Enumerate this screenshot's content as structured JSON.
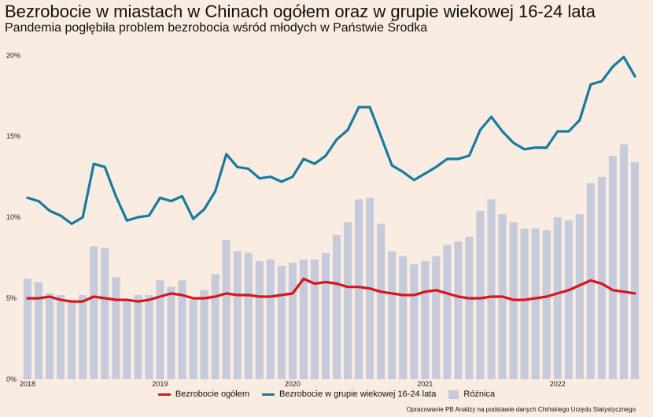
{
  "chart_data": {
    "type": "bar+line",
    "title": "Bezrobocie w miastach w Chinach ogółem oraz w grupie wiekowej 16-24 lata",
    "subtitle": "Pandemia pogłębiła problem bezrobocia wśród młodych w Państwie Środka",
    "source": "Opracowanie PB Analizy na podstawie danych Chińskiego Urzędu Statystycznego",
    "x_start": "2018-01",
    "x_end": "2022-07",
    "x_ticks": [
      "2018",
      "2019",
      "2020",
      "2021",
      "2022"
    ],
    "y_ticks": [
      "0%",
      "5%",
      "10%",
      "15%",
      "20%"
    ],
    "ylim": [
      0,
      20.5
    ],
    "grid": false,
    "legend_position": "bottom",
    "series": [
      {
        "name": "Bezrobocie ogółem",
        "type": "line",
        "color": "#d9141e",
        "values": [
          5.0,
          5.0,
          5.1,
          4.9,
          4.8,
          4.8,
          5.1,
          5.0,
          4.9,
          4.9,
          4.8,
          4.9,
          5.1,
          5.3,
          5.2,
          5.0,
          5.0,
          5.1,
          5.3,
          5.2,
          5.2,
          5.1,
          5.1,
          5.2,
          5.3,
          6.2,
          5.9,
          6.0,
          5.9,
          5.7,
          5.7,
          5.6,
          5.4,
          5.3,
          5.2,
          5.2,
          5.4,
          5.5,
          5.3,
          5.1,
          5.0,
          5.0,
          5.1,
          5.1,
          4.9,
          4.9,
          5.0,
          5.1,
          5.3,
          5.5,
          5.8,
          6.1,
          5.9,
          5.5,
          5.4,
          5.3
        ]
      },
      {
        "name": "Bezrobocie w grupie wiekowej 16-24 lata",
        "type": "line",
        "color": "#177aa0",
        "values": [
          11.2,
          11.0,
          10.4,
          10.1,
          9.6,
          10.0,
          13.3,
          13.1,
          11.3,
          9.8,
          10.0,
          10.1,
          11.2,
          11.0,
          11.3,
          9.9,
          10.5,
          11.6,
          13.9,
          13.1,
          13.0,
          12.4,
          12.5,
          12.2,
          12.5,
          13.6,
          13.3,
          13.8,
          14.8,
          15.4,
          16.8,
          16.8,
          15.0,
          13.2,
          12.8,
          12.3,
          12.7,
          13.1,
          13.6,
          13.6,
          13.8,
          15.4,
          16.2,
          15.3,
          14.6,
          14.2,
          14.3,
          14.3,
          15.3,
          15.3,
          16.0,
          18.2,
          18.4,
          19.3,
          19.9,
          18.7
        ]
      },
      {
        "name": "Różnica",
        "type": "bar",
        "color": "#c6cbdb",
        "values": [
          6.2,
          6.0,
          5.3,
          5.2,
          4.8,
          5.2,
          8.2,
          8.1,
          6.3,
          4.9,
          5.2,
          5.2,
          6.1,
          5.7,
          6.1,
          4.9,
          5.5,
          6.5,
          8.6,
          7.9,
          7.8,
          7.3,
          7.4,
          7.0,
          7.2,
          7.4,
          7.4,
          7.8,
          8.9,
          9.7,
          11.1,
          11.2,
          9.6,
          7.9,
          7.6,
          7.1,
          7.3,
          7.6,
          8.3,
          8.5,
          8.8,
          10.4,
          11.1,
          10.2,
          9.7,
          9.3,
          9.3,
          9.2,
          10.0,
          9.8,
          10.2,
          12.1,
          12.5,
          13.8,
          14.5,
          13.4
        ]
      }
    ]
  }
}
